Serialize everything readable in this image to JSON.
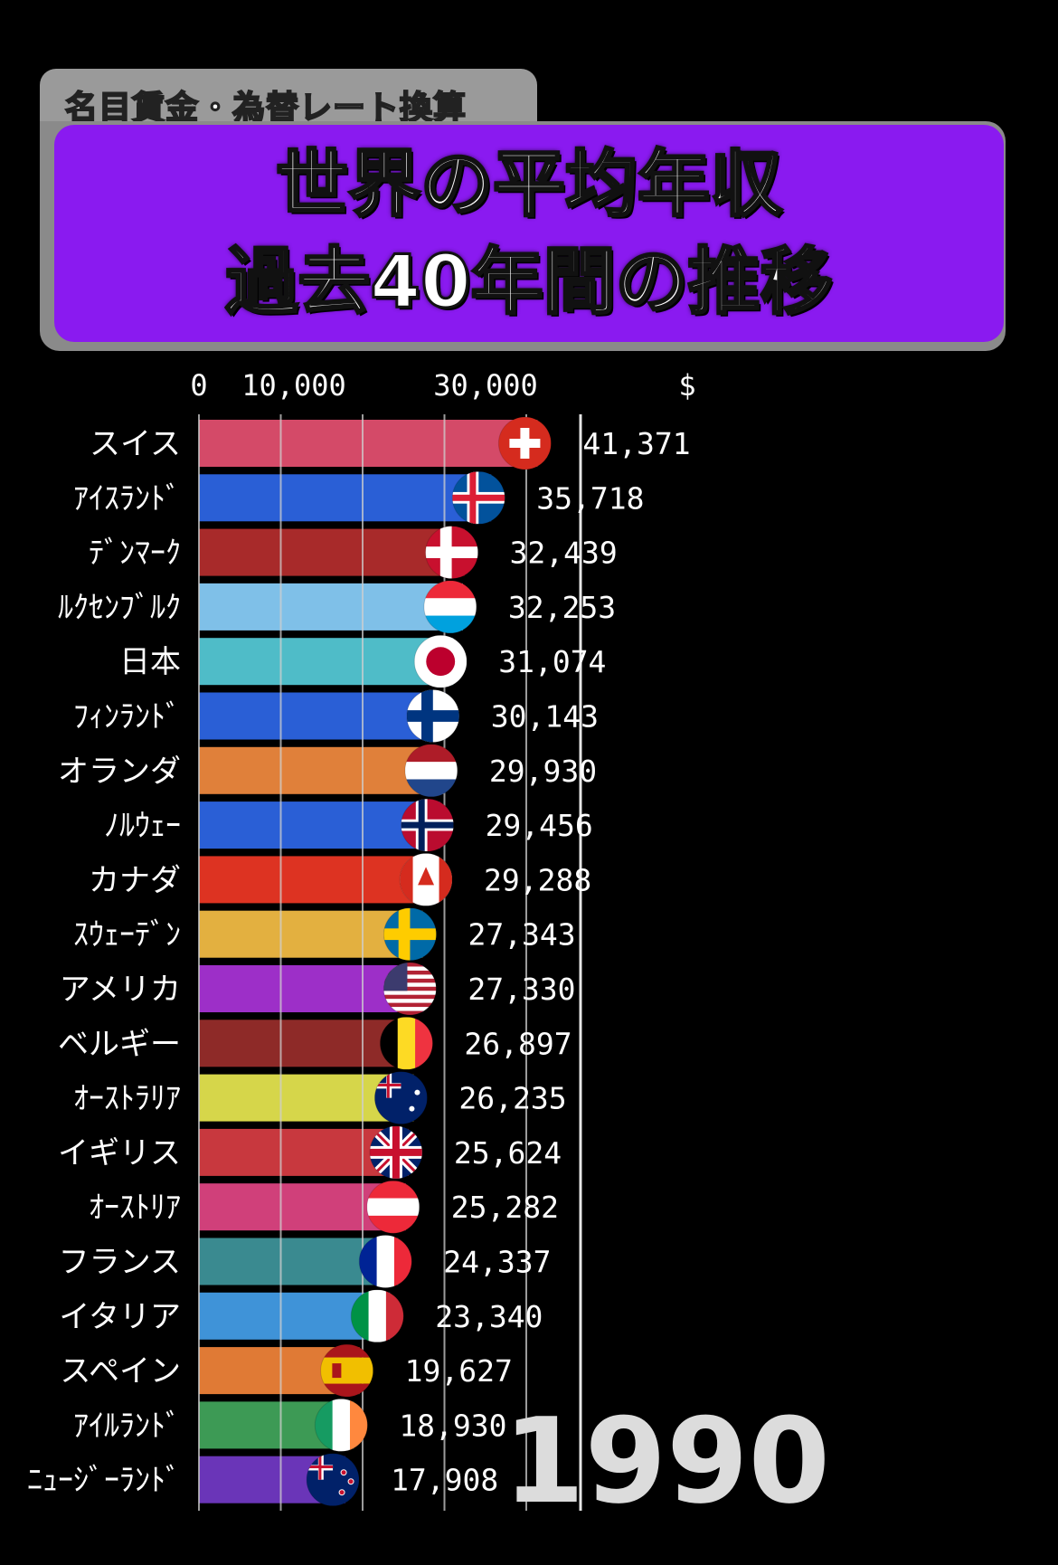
{
  "header": {
    "tag": "名目賃金・為替レート換算",
    "title_line1": "世界の平均年収",
    "title_line2": "過去40年間の推移"
  },
  "chart_data": {
    "type": "bar",
    "orientation": "horizontal",
    "xlabel": "$",
    "ticks": [
      "0",
      "10,000",
      "30,000"
    ],
    "tick_values": [
      0,
      10000,
      30000
    ],
    "grid": true,
    "year": "1990",
    "categories": [
      "スイス",
      "ｱｲｽﾗﾝﾄﾞ",
      "ﾃﾞﾝﾏｰｸ",
      "ﾙｸｾﾝﾌﾞﾙｸ",
      "日本",
      "ﾌｨﾝﾗﾝﾄﾞ",
      "オランダ",
      "ﾉﾙｳｪｰ",
      "カナダ",
      "ｽｳｪｰﾃﾞﾝ",
      "アメリカ",
      "ベルギー",
      "ｵｰｽﾄﾗﾘｱ",
      "イギリス",
      "ｵｰｽﾄﾘｱ",
      "フランス",
      "イタリア",
      "スペイン",
      "ｱｲﾙﾗﾝﾄﾞ",
      "ﾆｭｰｼﾞｰﾗﾝﾄﾞ"
    ],
    "values": [
      41371,
      35718,
      32439,
      32253,
      31074,
      30143,
      29930,
      29456,
      29288,
      27343,
      27330,
      26897,
      26235,
      25624,
      25282,
      24337,
      23340,
      19627,
      18930,
      17908
    ],
    "value_labels": [
      "41,371",
      "35,718",
      "32,439",
      "32,253",
      "31,074",
      "30,143",
      "29,930",
      "29,456",
      "29,288",
      "27,343",
      "27,330",
      "26,897",
      "26,235",
      "25,624",
      "25,282",
      "24,337",
      "23,340",
      "19,627",
      "18,930",
      "17,908"
    ],
    "colors": [
      "#d44a68",
      "#2a5fd6",
      "#a82a2a",
      "#7fc0e8",
      "#4fbcc8",
      "#2a5fd6",
      "#e0803a",
      "#2a5fd6",
      "#dd3322",
      "#e3b040",
      "#9d2fc8",
      "#8e2a28",
      "#d6d64a",
      "#c8383e",
      "#d0407a",
      "#3a8a90",
      "#3f93d8",
      "#e07a35",
      "#3d9a55",
      "#6a35b8"
    ],
    "flags": [
      "swiss-flag-icon",
      "iceland-flag-icon",
      "denmark-flag-icon",
      "luxembourg-flag-icon",
      "japan-flag-icon",
      "finland-flag-icon",
      "netherlands-flag-icon",
      "norway-flag-icon",
      "canada-flag-icon",
      "sweden-flag-icon",
      "usa-flag-icon",
      "belgium-flag-icon",
      "australia-flag-icon",
      "uk-flag-icon",
      "austria-flag-icon",
      "france-flag-icon",
      "italy-flag-icon",
      "spain-flag-icon",
      "ireland-flag-icon",
      "new-zealand-flag-icon"
    ]
  }
}
